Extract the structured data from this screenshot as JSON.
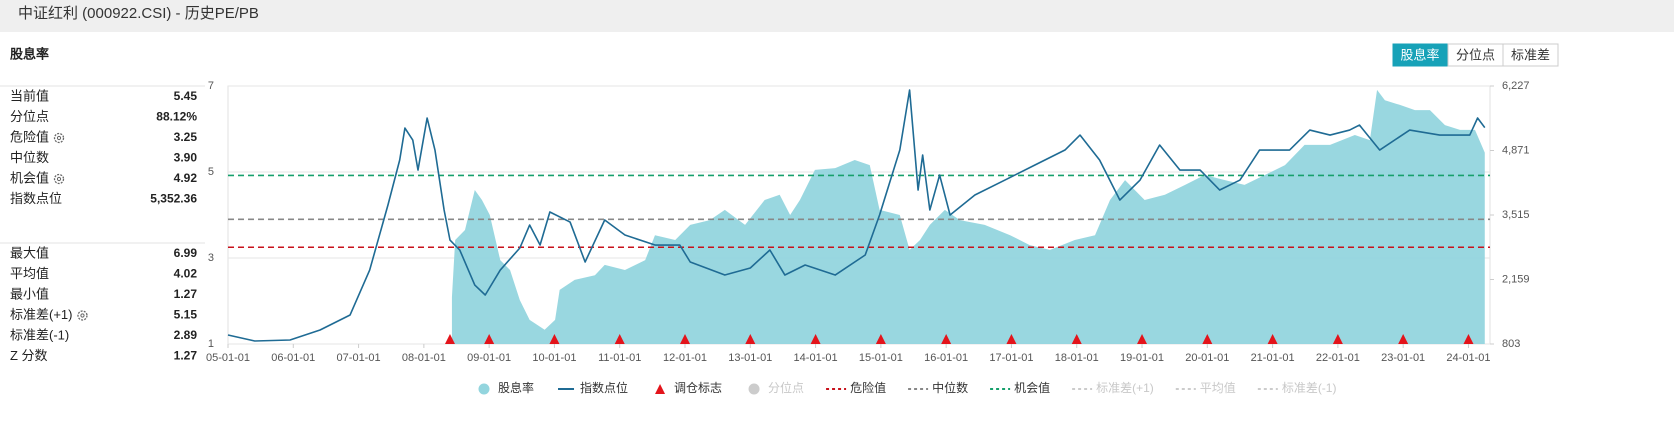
{
  "header": {
    "title": "中证红利 (000922.CSI) - 历史PE/PB"
  },
  "panel_title": "股息率",
  "buttons": [
    {
      "label": "股息率",
      "active": true
    },
    {
      "label": "分位点",
      "active": false
    },
    {
      "label": "标准差",
      "active": false
    }
  ],
  "stats": [
    [
      {
        "label": "当前值",
        "value": "5.45"
      },
      {
        "label": "分位点",
        "value": "88.12%"
      },
      {
        "label": "危险值",
        "value": "3.25",
        "gear": true
      },
      {
        "label": "中位数",
        "value": "3.90"
      },
      {
        "label": "机会值",
        "value": "4.92",
        "gear": true
      },
      {
        "label": "指数点位",
        "value": "5,352.36"
      }
    ],
    [
      {
        "label": "最大值",
        "value": "6.99"
      },
      {
        "label": "平均值",
        "value": "4.02"
      },
      {
        "label": "最小值",
        "value": "1.27"
      },
      {
        "label": "标准差(+1)",
        "value": "5.15",
        "gear": true
      },
      {
        "label": "标准差(-1)",
        "value": "2.89"
      },
      {
        "label": "Z 分数",
        "value": "1.27"
      }
    ]
  ],
  "chart_data": {
    "type": "line",
    "grid": true,
    "xlim": [
      2005,
      2024.33
    ],
    "xticks": [
      {
        "value": 2005,
        "label": "05-01-01"
      },
      {
        "value": 2006,
        "label": "06-01-01"
      },
      {
        "value": 2007,
        "label": "07-01-01"
      },
      {
        "value": 2008,
        "label": "08-01-01"
      },
      {
        "value": 2009,
        "label": "09-01-01"
      },
      {
        "value": 2010,
        "label": "10-01-01"
      },
      {
        "value": 2011,
        "label": "11-01-01"
      },
      {
        "value": 2012,
        "label": "12-01-01"
      },
      {
        "value": 2013,
        "label": "13-01-01"
      },
      {
        "value": 2014,
        "label": "14-01-01"
      },
      {
        "value": 2015,
        "label": "15-01-01"
      },
      {
        "value": 2016,
        "label": "16-01-01"
      },
      {
        "value": 2017,
        "label": "17-01-01"
      },
      {
        "value": 2018,
        "label": "18-01-01"
      },
      {
        "value": 2019,
        "label": "19-01-01"
      },
      {
        "value": 2020,
        "label": "20-01-01"
      },
      {
        "value": 2021,
        "label": "21-01-01"
      },
      {
        "value": 2022,
        "label": "22-01-01"
      },
      {
        "value": 2023,
        "label": "23-01-01"
      },
      {
        "value": 2024,
        "label": "24-01-01"
      }
    ],
    "ylim": [
      1,
      7
    ],
    "yticks": [
      1,
      3,
      5,
      7
    ],
    "y2lim": [
      803,
      6227
    ],
    "y2ticks": [
      {
        "value": 803,
        "label": "803"
      },
      {
        "value": 2159,
        "label": "2,159"
      },
      {
        "value": 3515,
        "label": "3,515"
      },
      {
        "value": 4871,
        "label": "4,871"
      },
      {
        "value": 6227,
        "label": "6,227"
      }
    ],
    "series": [
      {
        "name": "股息率",
        "type": "area",
        "color": "#93d5de",
        "x": [
          2008.43,
          2008.48,
          2008.63,
          2008.78,
          2008.89,
          2009.01,
          2009.17,
          2009.32,
          2009.47,
          2009.62,
          2009.85,
          2010.01,
          2010.08,
          2010.31,
          2010.62,
          2010.77,
          2011.08,
          2011.39,
          2011.54,
          2011.85,
          2012.08,
          2012.38,
          2012.61,
          2012.92,
          2013.22,
          2013.45,
          2013.61,
          2013.76,
          2013.99,
          2014.3,
          2014.6,
          2014.83,
          2014.98,
          2015.29,
          2015.44,
          2015.6,
          2015.75,
          2015.98,
          2016.21,
          2016.59,
          2016.98,
          2017.28,
          2017.59,
          2017.97,
          2018.28,
          2018.51,
          2018.74,
          2019.04,
          2019.35,
          2019.66,
          2019.96,
          2020.27,
          2020.57,
          2020.88,
          2021.19,
          2021.49,
          2021.88,
          2022.26,
          2022.49,
          2022.6,
          2022.72,
          2022.95,
          2023.18,
          2023.41,
          2023.64,
          2023.87,
          2024.1,
          2024.25
        ],
        "values": [
          2.09,
          3.42,
          3.65,
          4.58,
          4.35,
          4.0,
          2.95,
          2.72,
          2.02,
          1.56,
          1.33,
          1.56,
          2.26,
          2.49,
          2.6,
          2.84,
          2.72,
          2.95,
          3.53,
          3.42,
          3.77,
          3.88,
          4.12,
          3.77,
          4.35,
          4.47,
          4.0,
          4.35,
          5.05,
          5.09,
          5.28,
          5.16,
          4.12,
          4.0,
          3.19,
          3.42,
          3.77,
          4.12,
          3.88,
          3.77,
          3.53,
          3.3,
          3.19,
          3.42,
          3.53,
          4.35,
          4.81,
          4.35,
          4.47,
          4.7,
          4.93,
          4.81,
          4.7,
          4.93,
          5.16,
          5.63,
          5.63,
          5.86,
          5.74,
          6.91,
          6.67,
          6.56,
          6.44,
          6.44,
          6.09,
          5.98,
          5.98,
          5.45
        ]
      },
      {
        "name": "指数点位",
        "type": "line",
        "axis": "y2",
        "color": "#1f6b94",
        "x": [
          2005.0,
          2005.41,
          2005.95,
          2006.41,
          2006.87,
          2007.17,
          2007.45,
          2007.63,
          2007.71,
          2007.83,
          2007.91,
          2008.05,
          2008.17,
          2008.31,
          2008.4,
          2008.55,
          2008.78,
          2008.94,
          2009.17,
          2009.47,
          2009.62,
          2009.78,
          2009.93,
          2010.24,
          2010.47,
          2010.77,
          2011.08,
          2011.54,
          2011.92,
          2012.08,
          2012.61,
          2013.0,
          2013.3,
          2013.53,
          2013.84,
          2014.3,
          2014.76,
          2014.98,
          2015.29,
          2015.44,
          2015.57,
          2015.64,
          2015.75,
          2015.9,
          2016.06,
          2016.44,
          2016.9,
          2017.36,
          2017.82,
          2018.05,
          2018.35,
          2018.66,
          2018.97,
          2019.27,
          2019.58,
          2019.89,
          2020.19,
          2020.5,
          2020.8,
          2021.26,
          2021.57,
          2021.88,
          2022.18,
          2022.33,
          2022.64,
          2023.1,
          2023.56,
          2024.02,
          2024.14,
          2024.25
        ],
        "values": [
          992,
          866,
          887,
          1097,
          1413,
          2358,
          3725,
          4671,
          5343,
          5091,
          4460,
          5554,
          4881,
          3620,
          2989,
          2779,
          2043,
          1833,
          2358,
          2821,
          3304,
          2884,
          3578,
          3367,
          2527,
          3410,
          3094,
          2884,
          2884,
          2527,
          2253,
          2401,
          2779,
          2253,
          2464,
          2253,
          2674,
          3515,
          4881,
          6142,
          4040,
          4776,
          3620,
          4355,
          3515,
          3935,
          4250,
          4566,
          4881,
          5196,
          4671,
          3830,
          4250,
          4986,
          4460,
          4460,
          4040,
          4250,
          4881,
          4881,
          5301,
          5196,
          5301,
          5406,
          4881,
          5301,
          5196,
          5196,
          5554,
          5352.36
        ]
      },
      {
        "name": "调仓标志",
        "type": "marker",
        "color": "#e3141b",
        "x": [
          2008.4,
          2009,
          2010,
          2011,
          2012,
          2013,
          2014,
          2015,
          2016,
          2017,
          2018,
          2019,
          2020,
          2021,
          2022,
          2023,
          2024
        ]
      },
      {
        "name": "分位点",
        "type": "line",
        "color": "#cccccc",
        "visible": false
      }
    ],
    "reference_lines": [
      {
        "name": "危险值",
        "color": "#c8121c",
        "value": 3.25
      },
      {
        "name": "中位数",
        "color": "#888888",
        "value": 3.9
      },
      {
        "name": "机会值",
        "color": "#17a06c",
        "value": 4.92
      },
      {
        "name": "标准差(+1)",
        "color": "#cccccc",
        "visible": false
      },
      {
        "name": "平均值",
        "color": "#cccccc",
        "visible": false
      },
      {
        "name": "标准差(-1)",
        "color": "#cccccc",
        "visible": false
      }
    ]
  }
}
